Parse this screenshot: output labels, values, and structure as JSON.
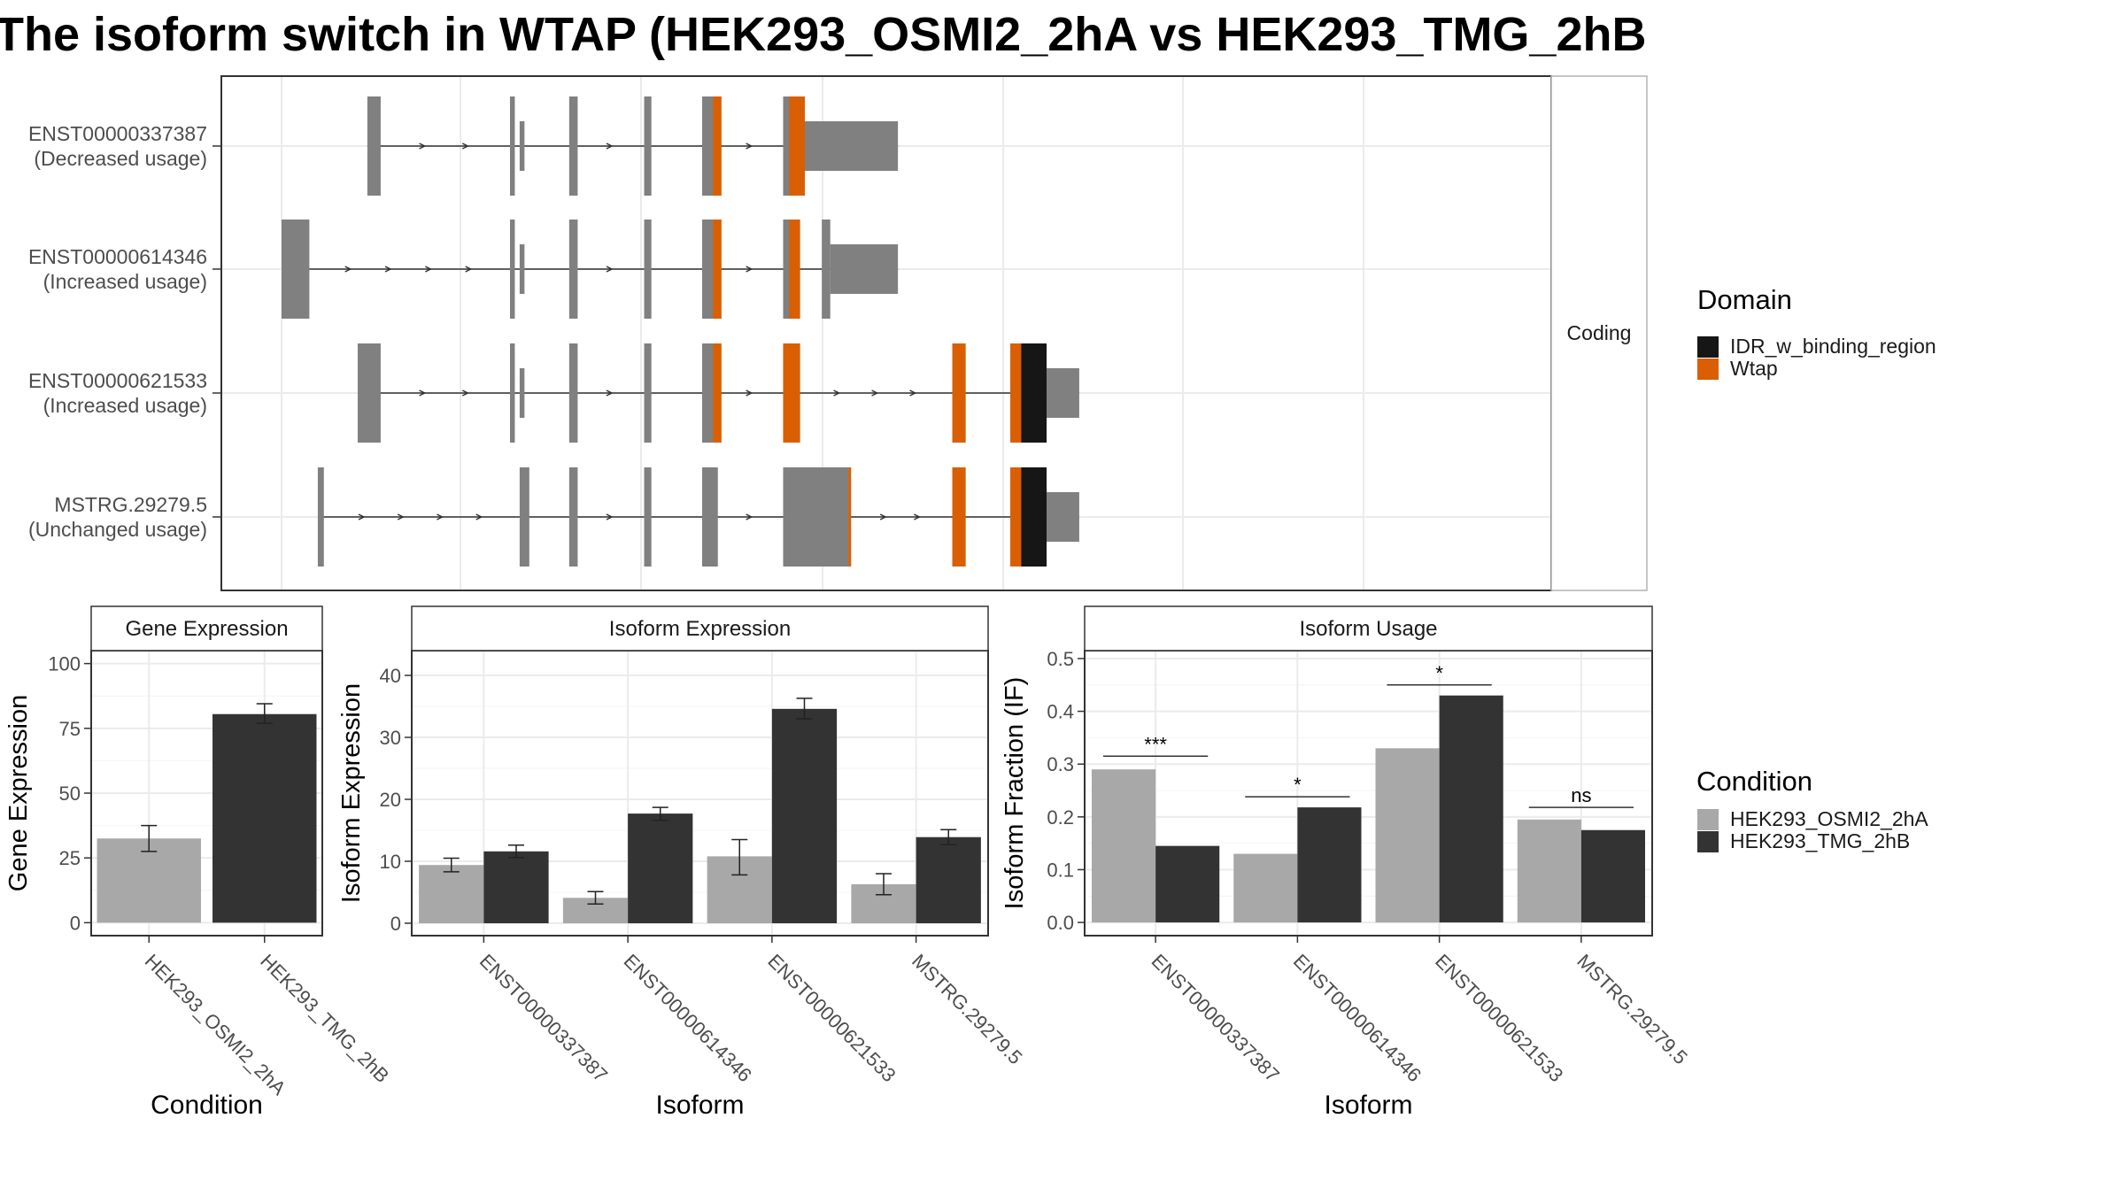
{
  "title": "The isoform switch in WTAP (HEK293_OSMI2_2hA vs HEK293_TMG_2hB",
  "colors": {
    "condition_a": "#a8a8a8",
    "condition_b": "#333333",
    "exon": "#808080",
    "wtap": "#d95f02",
    "idr": "#161616",
    "intron": "#333333"
  },
  "structure_plot": {
    "facet_label": "Coding",
    "x_range": [
      0,
      1000
    ],
    "isoforms": [
      {
        "label_line1": "ENST00000337387",
        "label_line2": "(Decreased usage)",
        "exons": [
          [
            71,
            82
          ],
          [
            189,
            193
          ],
          [
            238,
            245
          ],
          [
            300,
            306
          ],
          [
            348,
            361
          ],
          [
            415,
            429
          ]
        ],
        "utrs": [
          [
            197,
            201
          ],
          [
            429,
            510
          ]
        ],
        "domains": [
          {
            "type": "wtap",
            "range": [
              357,
              364
            ]
          },
          {
            "type": "wtap",
            "range": [
              420,
              433
            ]
          }
        ]
      },
      {
        "label_line1": "ENST00000614346",
        "label_line2": "(Increased usage)",
        "exons": [
          [
            0,
            23
          ],
          [
            189,
            193
          ],
          [
            238,
            245
          ],
          [
            300,
            306
          ],
          [
            348,
            361
          ],
          [
            415,
            429
          ],
          [
            447,
            454
          ]
        ],
        "utrs": [
          [
            197,
            201
          ],
          [
            454,
            510
          ]
        ],
        "domains": [
          {
            "type": "wtap",
            "range": [
              357,
              364
            ]
          },
          {
            "type": "wtap",
            "range": [
              420,
              429
            ]
          }
        ]
      },
      {
        "label_line1": "ENST00000621533",
        "label_line2": "(Increased usage)",
        "exons": [
          [
            63,
            82
          ],
          [
            189,
            193
          ],
          [
            238,
            245
          ],
          [
            300,
            306
          ],
          [
            348,
            361
          ],
          [
            415,
            429
          ],
          [
            555,
            566
          ],
          [
            603,
            612
          ],
          [
            612,
            633
          ]
        ],
        "utrs": [
          [
            197,
            201
          ],
          [
            633,
            660
          ]
        ],
        "domains": [
          {
            "type": "wtap",
            "range": [
              357,
              364
            ]
          },
          {
            "type": "wtap",
            "range": [
              415,
              429
            ]
          },
          {
            "type": "wtap",
            "range": [
              555,
              566
            ]
          },
          {
            "type": "wtap",
            "range": [
              603,
              612
            ]
          },
          {
            "type": "idr",
            "range": [
              612,
              633
            ]
          }
        ]
      },
      {
        "label_line1": "MSTRG.29279.5",
        "label_line2": "(Unchanged usage)",
        "exons": [
          [
            30,
            35
          ],
          [
            197,
            205
          ],
          [
            238,
            245
          ],
          [
            300,
            306
          ],
          [
            348,
            361
          ],
          [
            415,
            469
          ],
          [
            469,
            471
          ],
          [
            555,
            566
          ],
          [
            603,
            612
          ],
          [
            612,
            633
          ]
        ],
        "utrs": [
          [
            633,
            660
          ]
        ],
        "domains": [
          {
            "type": "wtap",
            "range": [
              469,
              471
            ]
          },
          {
            "type": "wtap",
            "range": [
              555,
              566
            ]
          },
          {
            "type": "wtap",
            "range": [
              603,
              612
            ]
          },
          {
            "type": "idr",
            "range": [
              612,
              633
            ]
          }
        ]
      }
    ]
  },
  "legend_domain": {
    "title": "Domain",
    "items": [
      {
        "label": "IDR_w_binding_region",
        "color": "#161616"
      },
      {
        "label": "Wtap",
        "color": "#d95f02"
      }
    ]
  },
  "legend_condition": {
    "title": "Condition",
    "items": [
      {
        "label": "HEK293_OSMI2_2hA",
        "color": "#a8a8a8"
      },
      {
        "label": "HEK293_TMG_2hB",
        "color": "#333333"
      }
    ]
  },
  "chart_data": [
    {
      "type": "bar",
      "title": "Gene Expression",
      "xlabel": "Condition",
      "ylabel": "Gene Expression",
      "categories": [
        "HEK293_OSMI2_2hA",
        "HEK293_TMG_2hB"
      ],
      "values": [
        32.5,
        80.5
      ],
      "errors": [
        [
          27.5,
          37.5
        ],
        [
          77,
          84.5
        ]
      ],
      "yticks": [
        0,
        25,
        50,
        75,
        100
      ],
      "ylim": [
        -5,
        105
      ],
      "colors": [
        "#a8a8a8",
        "#333333"
      ]
    },
    {
      "type": "bar",
      "title": "Isoform Expression",
      "xlabel": "Isoform",
      "ylabel": "Isoform Expression",
      "categories": [
        "ENST00000337387",
        "ENST00000614346",
        "ENST00000621533",
        "MSTRG.29279.5"
      ],
      "series": [
        {
          "name": "HEK293_OSMI2_2hA",
          "values": [
            9.4,
            4.1,
            10.8,
            6.3
          ],
          "errors": [
            [
              8.3,
              10.5
            ],
            [
              3.1,
              5.1
            ],
            [
              7.8,
              13.5
            ],
            [
              4.6,
              8.0
            ]
          ]
        },
        {
          "name": "HEK293_TMG_2hB",
          "values": [
            11.6,
            17.7,
            34.6,
            13.9
          ],
          "errors": [
            [
              10.6,
              12.6
            ],
            [
              16.6,
              18.7
            ],
            [
              33.0,
              36.3
            ],
            [
              12.7,
              15.1
            ]
          ]
        }
      ],
      "yticks": [
        0,
        10,
        20,
        30,
        40
      ],
      "ylim": [
        -2,
        44
      ]
    },
    {
      "type": "bar",
      "title": "Isoform Usage",
      "xlabel": "Isoform",
      "ylabel": "Isoform Fraction (IF)",
      "categories": [
        "ENST00000337387",
        "ENST00000614346",
        "ENST00000621533",
        "MSTRG.29279.5"
      ],
      "series": [
        {
          "name": "HEK293_OSMI2_2hA",
          "values": [
            0.29,
            0.13,
            0.33,
            0.195
          ]
        },
        {
          "name": "HEK293_TMG_2hB",
          "values": [
            0.145,
            0.218,
            0.43,
            0.175
          ]
        }
      ],
      "significance": [
        "***",
        "*",
        "*",
        "ns"
      ],
      "significance_y": [
        0.315,
        0.238,
        0.45,
        0.218
      ],
      "yticks": [
        0.0,
        0.1,
        0.2,
        0.3,
        0.4,
        0.5
      ],
      "ylim": [
        -0.025,
        0.515
      ]
    }
  ]
}
